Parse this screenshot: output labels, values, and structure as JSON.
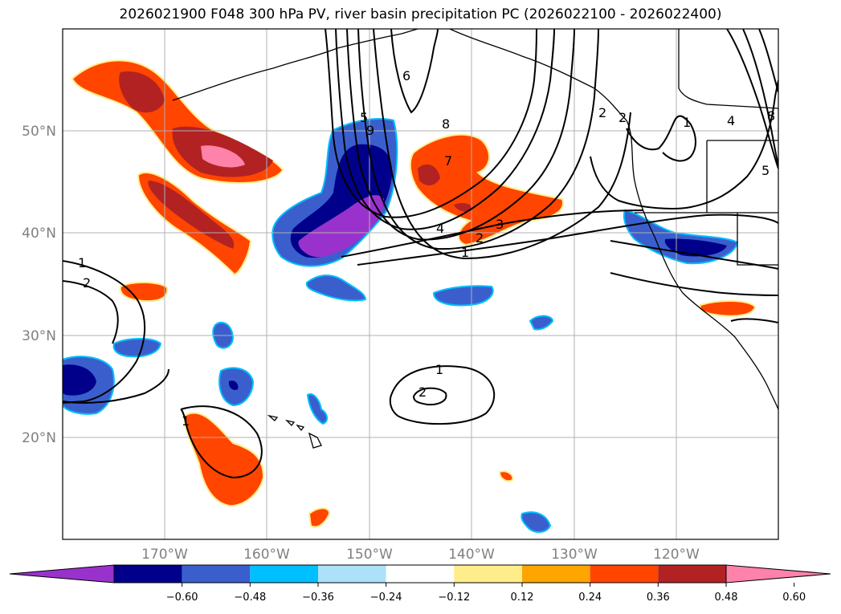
{
  "title": "2026021900 F048 300 hPa PV, river basin precipitation PC (2026022100 - 2026022400)",
  "map": {
    "lon_range": [
      -180,
      -110
    ],
    "lat_range": [
      10,
      60
    ],
    "lat_labels": [
      "20°N",
      "30°N",
      "40°N",
      "50°N"
    ],
    "lon_labels": [
      "170°W",
      "160°W",
      "150°W",
      "140°W",
      "130°W",
      "120°W"
    ],
    "grid": true,
    "pv_contour_labels": [
      "1",
      "2",
      "3",
      "4",
      "5",
      "6",
      "7",
      "8",
      "9",
      "1",
      "2",
      "1",
      "2",
      "1",
      "2",
      "1",
      "2",
      "4",
      "5",
      "8"
    ]
  },
  "colorbar": {
    "ticks": [
      "−0.60",
      "−0.48",
      "−0.36",
      "−0.24",
      "−0.12",
      "0.12",
      "0.24",
      "0.36",
      "0.48",
      "0.60"
    ],
    "colors": [
      "#9932CC",
      "#00008B",
      "#3A5FCD",
      "#00BFFF",
      "#ADE1FA",
      "#FFFFFF",
      "#FFEC8B",
      "#FFA500",
      "#FF4500",
      "#B22222",
      "#FF82AB"
    ]
  }
}
